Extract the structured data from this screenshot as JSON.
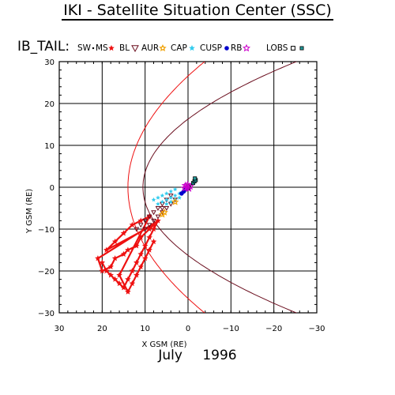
{
  "page": {
    "title": "IKI - Satellite Situation Center (SSC)",
    "month": "July",
    "year": "1996"
  },
  "colors": {
    "sw": "#000000",
    "ms": "#ee1111",
    "bl": "#6b0f1f",
    "aur": "#f0a000",
    "cap": "#33ccee",
    "cusp": "#0000cc",
    "rb": "#cc00cc",
    "lobs": "#000000",
    "ps": "#229999",
    "boundary_bs": "#ee1111",
    "boundary_mp": "#6b0f1f"
  },
  "chart_data": {
    "type": "scatter",
    "title": "IB_TAIL:",
    "xlabel": "X GSM (RE)",
    "ylabel": "Y GSM (RE)",
    "xlim": [
      30,
      -30
    ],
    "ylim": [
      30,
      -30
    ],
    "x_ticks": [
      30,
      20,
      10,
      0,
      -10,
      -20,
      -30
    ],
    "y_ticks": [
      -30,
      -20,
      -10,
      0,
      10,
      20,
      30
    ],
    "x_tick_labels": [
      "30",
      "20",
      "10",
      "0",
      "−10",
      "−20",
      "−30"
    ],
    "y_tick_labels": [
      "−30",
      "−20",
      "−10",
      "0",
      "10",
      "20",
      "30"
    ],
    "grid": true,
    "legend_position": "top",
    "legend": [
      {
        "label": "SW",
        "symbol": "dot",
        "color_key": "sw"
      },
      {
        "label": "MS",
        "symbol": "star",
        "color_key": "ms"
      },
      {
        "label": "BL",
        "symbol": "triangle",
        "color_key": "bl"
      },
      {
        "label": "AUR",
        "symbol": "sun",
        "color_key": "aur"
      },
      {
        "label": "CAP",
        "symbol": "star",
        "color_key": "cap"
      },
      {
        "label": "CUSP",
        "symbol": "disc",
        "color_key": "cusp"
      },
      {
        "label": "RB",
        "symbol": "starOutline",
        "color_key": "rb"
      },
      {
        "label": "LOBS",
        "symbol": "square",
        "color_key": "lobs"
      },
      {
        "label": "",
        "symbol": "squareFilled",
        "color_key": "ps"
      }
    ],
    "boundaries": {
      "bow_shock": {
        "nose_x": 14,
        "flare": 0.9
      },
      "magnetopause": {
        "nose_x": 10.5,
        "flare": 0.6
      }
    },
    "series": [
      {
        "region": "MS",
        "points": [
          [
            20,
            -18
          ],
          [
            19,
            -20
          ],
          [
            18,
            -21
          ],
          [
            17,
            -22
          ],
          [
            16,
            -23
          ],
          [
            15,
            -24
          ],
          [
            14,
            -22
          ],
          [
            13,
            -20
          ],
          [
            12,
            -18
          ],
          [
            11,
            -16
          ],
          [
            10,
            -14
          ],
          [
            9,
            -12
          ],
          [
            8,
            -10
          ],
          [
            7,
            -8
          ],
          [
            21,
            -17
          ],
          [
            20,
            -20
          ],
          [
            18,
            -19
          ],
          [
            17,
            -17
          ],
          [
            15,
            -16
          ],
          [
            14,
            -15
          ],
          [
            12,
            -14
          ],
          [
            11,
            -12
          ],
          [
            9,
            -10
          ],
          [
            8,
            -9
          ],
          [
            19,
            -15
          ],
          [
            17,
            -13
          ],
          [
            15,
            -11
          ],
          [
            13,
            -9
          ],
          [
            11,
            -8
          ],
          [
            9,
            -7
          ],
          [
            16,
            -21
          ],
          [
            14,
            -25
          ],
          [
            13,
            -23
          ],
          [
            12,
            -21
          ],
          [
            11,
            -19
          ],
          [
            10,
            -17
          ],
          [
            9,
            -15
          ],
          [
            8,
            -13
          ]
        ]
      },
      {
        "region": "BL",
        "points": [
          [
            11,
            -9
          ],
          [
            10,
            -8
          ],
          [
            9,
            -7
          ],
          [
            8,
            -6
          ],
          [
            7,
            -5
          ],
          [
            6,
            -4
          ],
          [
            5,
            -3
          ],
          [
            4,
            -2
          ],
          [
            10,
            -10
          ],
          [
            9,
            -9
          ],
          [
            8,
            -8
          ],
          [
            7,
            -7
          ],
          [
            6,
            -6
          ],
          [
            5,
            -5
          ],
          [
            4,
            -4
          ],
          [
            3,
            -3
          ],
          [
            12,
            -10
          ],
          [
            6,
            -5
          ]
        ]
      },
      {
        "region": "CAP",
        "points": [
          [
            7,
            -4
          ],
          [
            6,
            -3.5
          ],
          [
            5,
            -3
          ],
          [
            4,
            -2.5
          ],
          [
            3,
            -2
          ],
          [
            2,
            -1.5
          ],
          [
            6,
            -2
          ],
          [
            5,
            -1.5
          ],
          [
            4,
            -1
          ],
          [
            3,
            -0.5
          ],
          [
            8,
            -3
          ],
          [
            7,
            -2.5
          ],
          [
            5,
            -4
          ],
          [
            4,
            -3.5
          ],
          [
            3,
            -3
          ],
          [
            2,
            -2.5
          ]
        ]
      },
      {
        "region": "AUR",
        "points": [
          [
            6,
            -6.5
          ],
          [
            5.5,
            -6
          ],
          [
            3,
            -3.5
          ]
        ]
      },
      {
        "region": "CUSP",
        "points": [
          [
            1,
            -1
          ],
          [
            0.5,
            -0.5
          ],
          [
            1.5,
            -1.5
          ]
        ]
      },
      {
        "region": "RB",
        "points": [
          [
            0.3,
            0
          ],
          [
            0.8,
            -0.2
          ],
          [
            0.6,
            0.4
          ],
          [
            -0.2,
            -0.3
          ],
          [
            -0.5,
            0.2
          ],
          [
            0.1,
            0.6
          ]
        ]
      },
      {
        "region": "LOBS",
        "points": [
          [
            -1.2,
            1
          ],
          [
            -1.5,
            1.4
          ],
          [
            -1.8,
            1.7
          ],
          [
            -1.6,
            2.1
          ]
        ]
      }
    ]
  }
}
